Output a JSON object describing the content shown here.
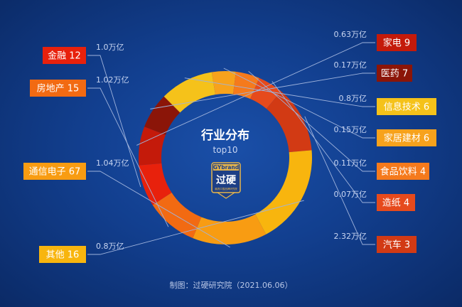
{
  "chart_data": {
    "type": "pie",
    "title": "行业分布",
    "subtitle": "top10",
    "categories": [
      "家电 9",
      "医药 7",
      "信息技术 6",
      "家居建材 6",
      "食品饮料 4",
      "造纸 4",
      "汽车 3",
      "其他 16",
      "通信电子 67",
      "房地产 15",
      "金融 12"
    ],
    "values_text": [
      "0.63万亿",
      "0.17万亿",
      "0.8万亿",
      "0.15万亿",
      "0.11万亿",
      "0.07万亿",
      "2.32万亿",
      "0.8万亿",
      "1.04万亿",
      "1.02万亿",
      "1.0万亿"
    ],
    "values": [
      9,
      7,
      6,
      6,
      4,
      4,
      3,
      16,
      67,
      15,
      12
    ],
    "sweep_degrees": [
      26,
      24,
      36,
      16,
      16,
      17,
      45,
      67,
      50,
      35,
      28
    ],
    "colors": [
      "#c41a0a",
      "#8b1508",
      "#f5c21a",
      "#f7a21c",
      "#f57a1c",
      "#e64a1c",
      "#d23a14",
      "#f8b50e",
      "#f89c12",
      "#f26a12",
      "#e8210c"
    ],
    "legend_placement": "around"
  },
  "logo": {
    "brand": "GYbrand",
    "name": "过硬",
    "tagline": "最具中国品牌研究院"
  },
  "footer": "制图：过硬研究院（2021.06.06）"
}
